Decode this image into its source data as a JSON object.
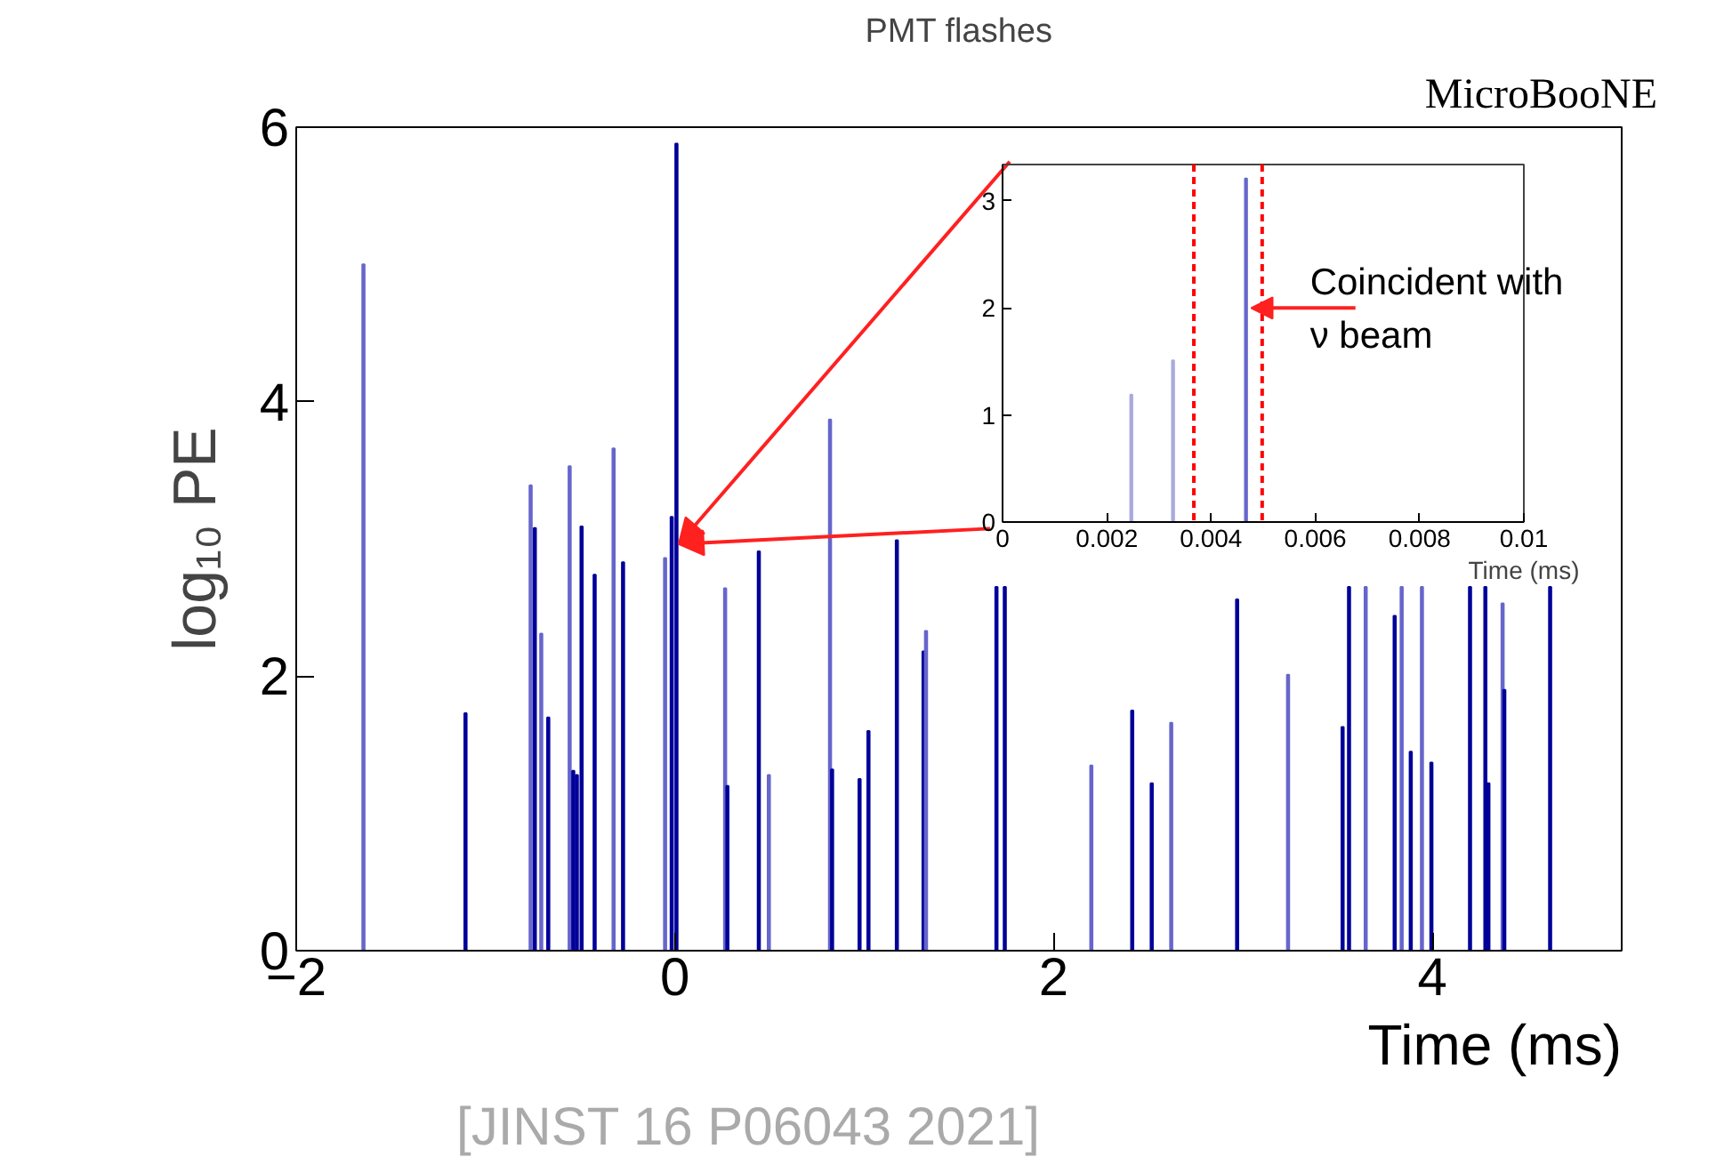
{
  "chart_data": [
    {
      "type": "bar",
      "title": "PMT flashes",
      "xlabel": "Time (ms)",
      "ylabel": "log₁₀ PE",
      "x": [
        -1.645,
        -1.106,
        -0.762,
        -0.74,
        -0.706,
        -0.669,
        -0.556,
        -0.537,
        -0.518,
        -0.493,
        -0.424,
        -0.324,
        -0.274,
        -0.052,
        -0.017,
        0.008,
        0.265,
        0.277,
        0.443,
        0.496,
        0.819,
        0.83,
        0.975,
        1.022,
        1.172,
        1.313,
        1.326,
        1.698,
        1.742,
        2.199,
        2.415,
        2.518,
        2.621,
        2.969,
        3.238,
        3.526,
        3.56,
        3.648,
        3.801,
        3.838,
        3.886,
        3.945,
        3.995,
        4.199,
        4.28,
        4.296,
        4.371,
        4.38,
        4.622
      ],
      "values": [
        5.0,
        1.73,
        3.39,
        3.08,
        2.31,
        1.7,
        3.53,
        1.31,
        1.28,
        3.09,
        2.74,
        3.66,
        2.83,
        2.86,
        3.16,
        5.88,
        2.64,
        1.2,
        2.91,
        1.28,
        3.87,
        1.32,
        1.25,
        1.6,
        2.99,
        2.18,
        2.33,
        2.65,
        2.65,
        1.35,
        1.75,
        1.22,
        1.66,
        2.56,
        2.01,
        1.63,
        2.65,
        2.65,
        2.44,
        2.65,
        1.45,
        2.65,
        1.37,
        2.65,
        2.65,
        1.22,
        2.53,
        1.9,
        2.65
      ],
      "colors": [
        "#6666cc",
        "#000099",
        "#6666cc",
        "#000099",
        "#6666cc",
        "#000099",
        "#6666cc",
        "#000099",
        "#000099",
        "#000099",
        "#000099",
        "#6666cc",
        "#000099",
        "#6666cc",
        "#000099",
        "#000099",
        "#6666cc",
        "#000099",
        "#000099",
        "#6666cc",
        "#6666cc",
        "#000099",
        "#000099",
        "#000099",
        "#000099",
        "#000099",
        "#6666cc",
        "#000099",
        "#000099",
        "#6666cc",
        "#000099",
        "#000099",
        "#6666cc",
        "#000099",
        "#6666cc",
        "#000099",
        "#000099",
        "#6666cc",
        "#000099",
        "#6666cc",
        "#000099",
        "#6666cc",
        "#000099",
        "#000099",
        "#000099",
        "#000099",
        "#6666cc",
        "#000099",
        "#000099"
      ],
      "xlim": [
        -2,
        5
      ],
      "xticks": [
        {
          "value": -2,
          "label": "−2"
        },
        0,
        2,
        4
      ],
      "ylim": [
        0,
        6
      ],
      "yticks": [
        0,
        2,
        4,
        6
      ],
      "annotations": [
        "MicroBooNE",
        "[JINST 16 P06043 2021]"
      ]
    },
    {
      "type": "bar",
      "xlabel": "Time (ms)",
      "x": [
        0.00247,
        0.00327,
        0.00467
      ],
      "values": [
        1.19,
        1.51,
        3.21
      ],
      "colors": [
        "#aaaadd",
        "#aaaadd",
        "#6666cc"
      ],
      "xlim": [
        0,
        0.01
      ],
      "xticks": [
        0,
        0.002,
        0.004,
        0.006,
        0.008,
        0.01
      ],
      "ylim": [
        0,
        3.34
      ],
      "yticks": [
        0,
        1,
        2,
        3
      ],
      "ref_lines": [
        {
          "axis": "x",
          "value": 0.00367,
          "color": "#ff0000",
          "line_style": "dashed"
        },
        {
          "axis": "x",
          "value": 0.00498,
          "color": "#ff0000",
          "line_style": "dashed"
        }
      ],
      "annotations": [
        {
          "text": "Coincident with\nν beam",
          "x": 0.00467,
          "y": 2
        }
      ]
    }
  ]
}
